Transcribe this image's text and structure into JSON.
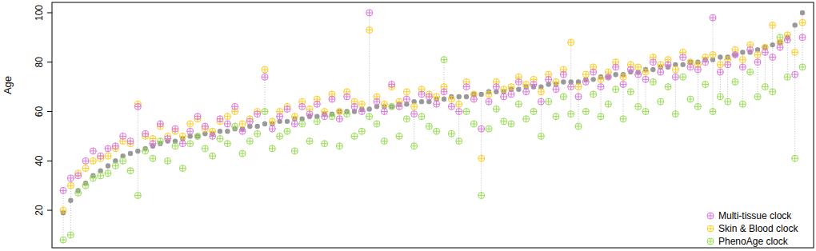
{
  "chart_data": {
    "type": "scatter",
    "y_label": "Age",
    "x": [
      1,
      2,
      3,
      4,
      5,
      6,
      7,
      8,
      9,
      10,
      11,
      12,
      13,
      14,
      15,
      16,
      17,
      18,
      19,
      20,
      21,
      22,
      23,
      24,
      25,
      26,
      27,
      28,
      29,
      30,
      31,
      32,
      33,
      34,
      35,
      36,
      37,
      38,
      39,
      40,
      41,
      42,
      43,
      44,
      45,
      46,
      47,
      48,
      49,
      50,
      51,
      52,
      53,
      54,
      55,
      56,
      57,
      58,
      59,
      60,
      61,
      62,
      63,
      64,
      65,
      66,
      67,
      68,
      69,
      70,
      71,
      72,
      73,
      74,
      75,
      76,
      77,
      78,
      79,
      80,
      81,
      82,
      83,
      84,
      85,
      86,
      87,
      88,
      89,
      90,
      91,
      92,
      93,
      94,
      95,
      96,
      97,
      98,
      99,
      100
    ],
    "xlim": [
      -0.5,
      101.5
    ],
    "ylim": [
      4.8,
      104.2
    ],
    "yticks": [
      20,
      40,
      60,
      80,
      100
    ],
    "tick_labels": "y",
    "legend": "bottom-right",
    "series": [
      {
        "color": "#999999",
        "marker": "dot",
        "values": [
          19,
          24,
          28,
          31,
          34,
          36,
          38,
          40,
          42,
          43,
          44,
          45,
          46,
          47,
          48,
          48,
          49,
          50,
          50,
          51,
          51,
          52,
          52,
          53,
          53,
          54,
          54,
          55,
          55,
          56,
          56,
          57,
          57,
          58,
          58,
          59,
          59,
          60,
          60,
          60,
          61,
          61,
          62,
          62,
          62,
          63,
          63,
          64,
          64,
          64,
          65,
          65,
          66,
          66,
          66,
          67,
          67,
          68,
          68,
          68,
          69,
          69,
          70,
          70,
          70,
          71,
          71,
          72,
          72,
          72,
          73,
          73,
          74,
          74,
          75,
          75,
          76,
          76,
          77,
          77,
          78,
          78,
          79,
          79,
          80,
          80,
          81,
          81,
          82,
          82,
          83,
          84,
          84,
          85,
          86,
          87,
          88,
          90,
          95,
          100
        ]
      },
      {
        "name": "PhenoAge clock",
        "color": "#99DD55",
        "marker": "circle-cross",
        "values": [
          8,
          10,
          27,
          30,
          33,
          34,
          35,
          38,
          40,
          36,
          26,
          44,
          41,
          48,
          40,
          46,
          37,
          47,
          50,
          45,
          42,
          49,
          47,
          54,
          43,
          48,
          51,
          60,
          45,
          50,
          52,
          44,
          55,
          48,
          56,
          47,
          58,
          46,
          59,
          50,
          52,
          58,
          55,
          48,
          62,
          50,
          57,
          46,
          58,
          54,
          52,
          81,
          51,
          48,
          60,
          55,
          26,
          53,
          61,
          56,
          55,
          63,
          57,
          60,
          50,
          64,
          58,
          66,
          59,
          54,
          60,
          67,
          58,
          63,
          69,
          57,
          68,
          62,
          60,
          72,
          64,
          70,
          59,
          74,
          65,
          62,
          71,
          60,
          66,
          64,
          72,
          63,
          76,
          66,
          70,
          68,
          90,
          74,
          41,
          78
        ]
      },
      {
        "name": "Skin & Blood clock",
        "color": "#FFCC22",
        "marker": "circle-cross",
        "values": [
          20,
          30,
          35,
          37,
          40,
          41,
          42,
          45,
          48,
          47,
          63,
          50,
          49,
          54,
          50,
          52,
          50,
          55,
          57,
          53,
          52,
          56,
          58,
          60,
          55,
          57,
          60,
          77,
          56,
          60,
          62,
          58,
          64,
          61,
          65,
          60,
          67,
          60,
          68,
          64,
          63,
          93,
          66,
          63,
          70,
          64,
          68,
          62,
          69,
          67,
          66,
          70,
          65,
          63,
          72,
          67,
          41,
          67,
          72,
          69,
          70,
          74,
          71,
          73,
          68,
          75,
          72,
          77,
          88,
          70,
          75,
          78,
          73,
          76,
          80,
          74,
          79,
          78,
          76,
          82,
          79,
          81,
          77,
          84,
          80,
          79,
          82,
          83,
          79,
          81,
          85,
          81,
          87,
          83,
          86,
          95,
          88,
          91,
          84,
          96
        ]
      },
      {
        "name": "Multi-tissue clock",
        "color": "#DD77DD",
        "marker": "circle-cross",
        "values": [
          28,
          33,
          34,
          40,
          44,
          42,
          45,
          46,
          50,
          48,
          62,
          51,
          47,
          55,
          49,
          53,
          47,
          52,
          58,
          54,
          50,
          57,
          55,
          62,
          52,
          56,
          59,
          74,
          53,
          58,
          61,
          55,
          62,
          59,
          63,
          58,
          65,
          57,
          66,
          62,
          60,
          100,
          64,
          60,
          71,
          62,
          65,
          59,
          67,
          66,
          63,
          68,
          62,
          60,
          70,
          65,
          53,
          64,
          70,
          66,
          67,
          72,
          68,
          71,
          64,
          73,
          69,
          75,
          70,
          66,
          72,
          76,
          70,
          74,
          78,
          71,
          77,
          75,
          73,
          80,
          76,
          79,
          74,
          82,
          78,
          77,
          80,
          98,
          76,
          79,
          83,
          78,
          85,
          80,
          84,
          82,
          86,
          89,
          75,
          90
        ]
      }
    ]
  }
}
